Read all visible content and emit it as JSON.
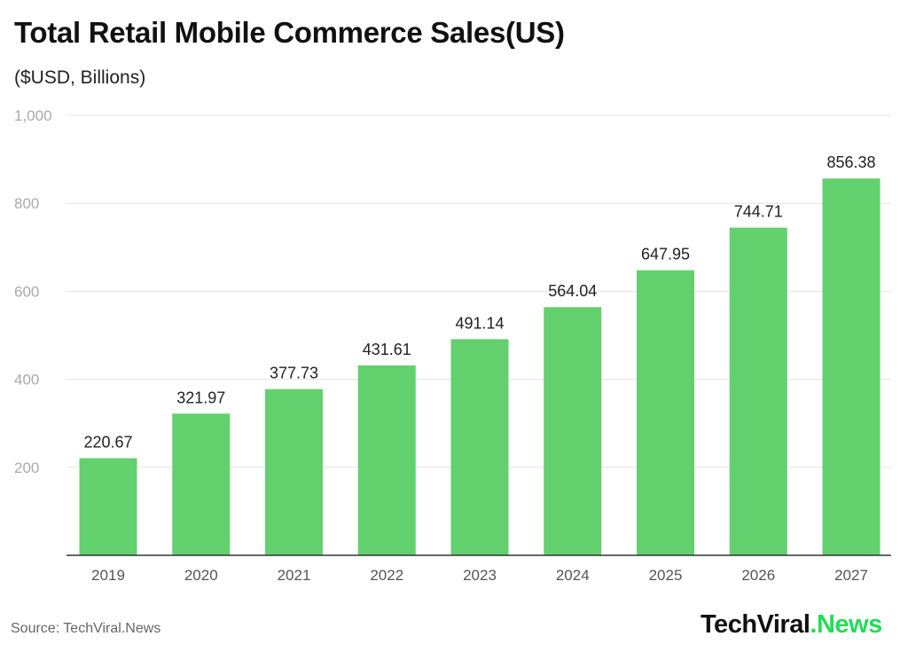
{
  "chart_data": {
    "type": "bar",
    "title": "Total Retail Mobile Commerce Sales(US)",
    "subtitle": "($USD, Billions)",
    "categories": [
      "2019",
      "2020",
      "2021",
      "2022",
      "2023",
      "2024",
      "2025",
      "2026",
      "2027"
    ],
    "values": [
      220.67,
      321.97,
      377.73,
      431.61,
      491.14,
      564.04,
      647.95,
      744.71,
      856.38
    ],
    "value_labels": [
      "220.67",
      "321.97",
      "377.73",
      "431.61",
      "491.14",
      "564.04",
      "647.95",
      "744.71",
      "856.38"
    ],
    "ylim": [
      0,
      1000
    ],
    "yticks": [
      200,
      400,
      600,
      800,
      1000
    ],
    "ytick_labels": [
      "200",
      "400",
      "600",
      "800",
      "1,000"
    ],
    "grid": true,
    "bar_color": "#63d06e",
    "xlabel": "",
    "ylabel": ""
  },
  "footer": {
    "source": "Source: TechViral.News",
    "logo_main": "TechViral",
    "logo_accent": ".News"
  }
}
